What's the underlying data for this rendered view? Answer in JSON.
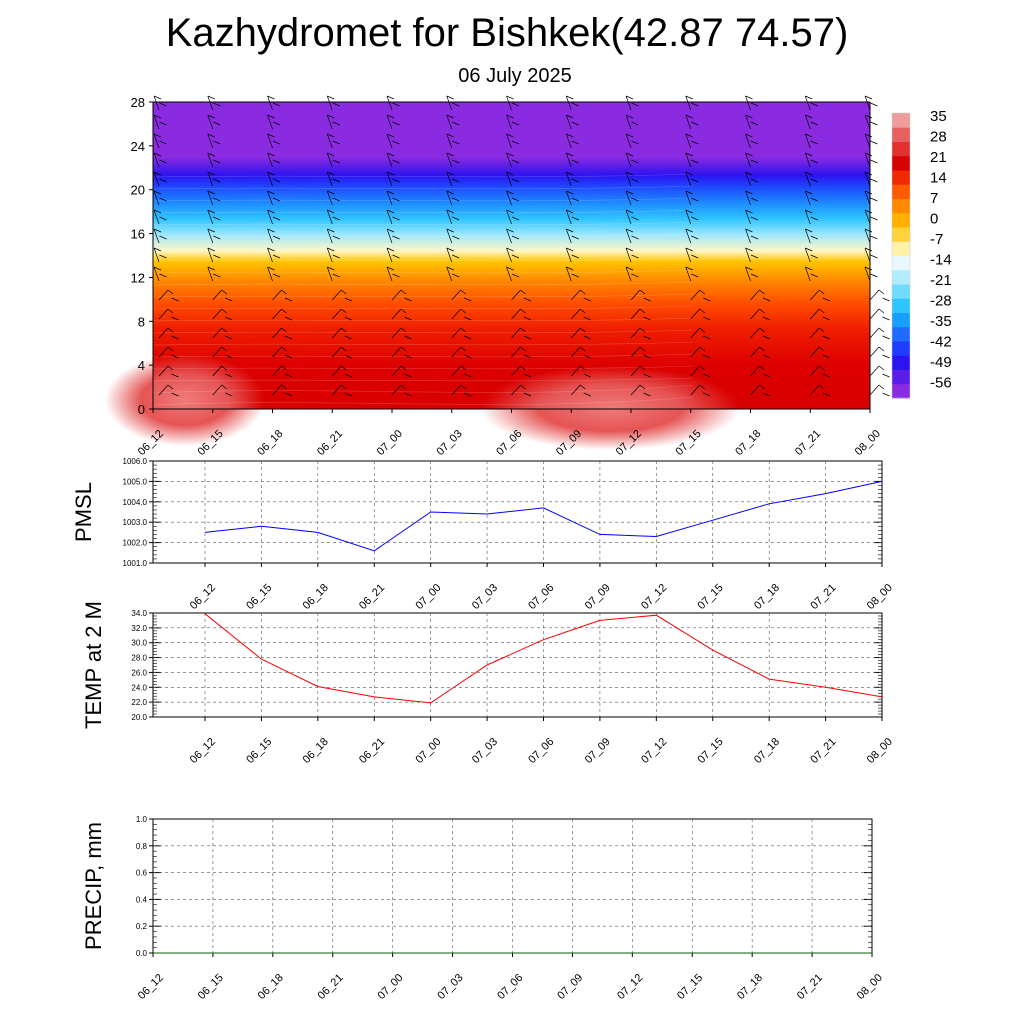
{
  "title": "Kazhydromet for Bishkek(42.87 74.57)",
  "subtitle": "06 July 2025",
  "time_labels": [
    "06_12",
    "06_15",
    "06_18",
    "06_21",
    "07_00",
    "07_03",
    "07_06",
    "07_09",
    "07_12",
    "07_15",
    "07_18",
    "07_21",
    "08_00"
  ],
  "chart_data": [
    {
      "type": "heatmap",
      "description_units": "temperature by height, with wind barbs",
      "y_ticks": [
        0,
        4,
        8,
        12,
        16,
        20,
        24,
        28
      ],
      "ylim": [
        0,
        28
      ],
      "colorbar": {
        "labels": [
          "35",
          "28",
          "21",
          "14",
          "7",
          "0",
          "-7",
          "-14",
          "-21",
          "-28",
          "-35",
          "-42",
          "-49",
          "-56"
        ],
        "palette": [
          "#8a2be2",
          "#5a1ee8",
          "#2a14f0",
          "#1f3cff",
          "#1e6cff",
          "#17a0ff",
          "#2ec4ff",
          "#6fdcff",
          "#b4ecff",
          "#e8f8ff",
          "#fff2a8",
          "#ffd23c",
          "#ffb000",
          "#ff8a00",
          "#ff5a00",
          "#f02a00",
          "#d90000",
          "#e23030",
          "#e66060",
          "#ee9c9c"
        ]
      }
    },
    {
      "type": "line",
      "ylabel": "PMSL",
      "ylim": [
        1001.0,
        1006.0
      ],
      "y_ticks": [
        "1001.0",
        "1002.0",
        "1003.0",
        "1004.0",
        "1005.0",
        "1006.0"
      ],
      "series": [
        {
          "color": "#0000ff",
          "values": [
            1002.5,
            1002.8,
            1002.5,
            1001.6,
            1003.5,
            1003.4,
            1003.7,
            1002.4,
            1002.3,
            1003.1,
            1003.9,
            1004.4,
            1005.0
          ]
        }
      ]
    },
    {
      "type": "line",
      "ylabel": "TEMP at 2 M",
      "ylim": [
        20.0,
        34.0
      ],
      "y_ticks": [
        "20.0",
        "22.0",
        "24.0",
        "26.0",
        "28.0",
        "30.0",
        "32.0",
        "34.0"
      ],
      "series": [
        {
          "color": "#ff0000",
          "values": [
            33.9,
            27.8,
            24.1,
            22.7,
            21.9,
            27.0,
            30.4,
            33.0,
            33.7,
            29.0,
            25.1,
            24.0,
            22.7
          ]
        }
      ]
    },
    {
      "type": "line",
      "ylabel": "PRECIP, mm",
      "ylim": [
        0.0,
        1.0
      ],
      "y_ticks": [
        "0.0",
        "0.2",
        "0.4",
        "0.6",
        "0.8",
        "1.0"
      ],
      "series": [
        {
          "color": "#006400",
          "values": [
            0,
            0,
            0,
            0,
            0,
            0,
            0,
            0,
            0,
            0,
            0,
            0,
            0
          ]
        }
      ]
    }
  ]
}
